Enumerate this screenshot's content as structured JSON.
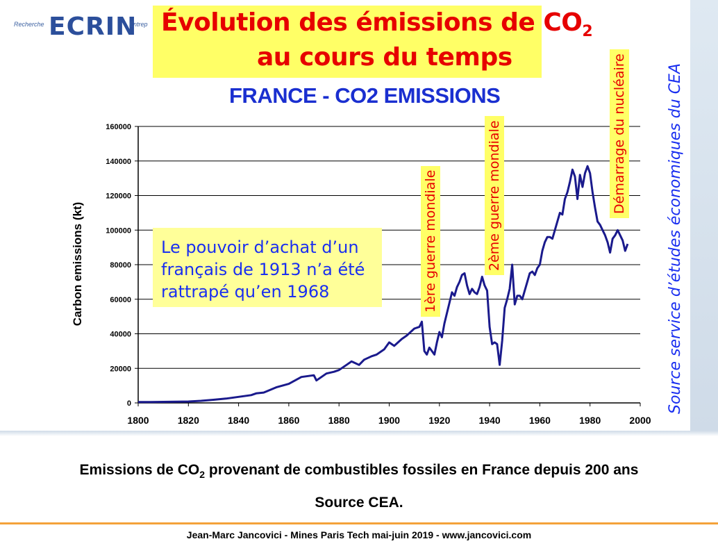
{
  "logo": {
    "left": "Recherche",
    "main": "ECRIN",
    "right": "Entrep"
  },
  "slide_title": {
    "line1": "Évolution des émissions de CO",
    "line1_sub": "2",
    "line2": "au cours du temps"
  },
  "annotations": {
    "box_lines": [
      "Le pouvoir d’achat d’un",
      "français de 1913 n’a été",
      "rattrapé qu’en 1968"
    ],
    "ww1": "1ère guerre mondiale",
    "ww2": "2ème guerre mondiale",
    "nuclear": "Démarrage du nucléaire",
    "side_source": "Source service d’études économiques du CEA"
  },
  "caption": {
    "line1_pre": "Emissions de CO",
    "line1_sub": "2",
    "line1_post": " provenant de combustibles fossiles en France depuis 200 ans",
    "line2": "Source CEA."
  },
  "footer": "Jean-Marc Jancovici - Mines Paris Tech mai-juin 2019 - www.jancovici.com",
  "colors": {
    "line": "#1a1a8c",
    "title_red": "#e60000",
    "accent_blue": "#1a2fd0",
    "highlight": "#ffff66"
  },
  "chart_data": {
    "type": "line",
    "title": "FRANCE - CO2 EMISSIONS",
    "xlabel": "",
    "ylabel": "Carbon emissions (kt)",
    "xlim": [
      1800,
      2000
    ],
    "ylim": [
      0,
      160000
    ],
    "x_ticks": [
      1800,
      1820,
      1840,
      1860,
      1880,
      1900,
      1920,
      1940,
      1960,
      1980,
      2000
    ],
    "y_ticks": [
      0,
      20000,
      40000,
      60000,
      80000,
      100000,
      120000,
      140000,
      160000
    ],
    "grid": true,
    "series": [
      {
        "name": "",
        "x": [
          1800,
          1805,
          1810,
          1815,
          1820,
          1825,
          1830,
          1835,
          1840,
          1845,
          1847,
          1850,
          1855,
          1860,
          1865,
          1870,
          1871,
          1875,
          1878,
          1880,
          1883,
          1885,
          1888,
          1890,
          1893,
          1895,
          1898,
          1900,
          1902,
          1905,
          1907,
          1910,
          1912,
          1913,
          1914,
          1915,
          1916,
          1917,
          1918,
          1919,
          1920,
          1921,
          1922,
          1924,
          1925,
          1926,
          1927,
          1928,
          1929,
          1930,
          1931,
          1932,
          1933,
          1934,
          1935,
          1936,
          1937,
          1938,
          1939,
          1940,
          1941,
          1942,
          1943,
          1944,
          1945,
          1946,
          1947,
          1948,
          1949,
          1950,
          1951,
          1952,
          1953,
          1954,
          1955,
          1956,
          1957,
          1958,
          1959,
          1960,
          1961,
          1962,
          1963,
          1964,
          1965,
          1966,
          1967,
          1968,
          1969,
          1970,
          1971,
          1972,
          1973,
          1974,
          1975,
          1976,
          1977,
          1978,
          1979,
          1980,
          1981,
          1982,
          1983,
          1984,
          1985,
          1986,
          1987,
          1988,
          1989,
          1990,
          1991,
          1992,
          1993,
          1994,
          1995
        ],
        "values": [
          500,
          500,
          600,
          700,
          800,
          1200,
          1800,
          2500,
          3500,
          4500,
          5500,
          6000,
          9000,
          11000,
          15000,
          16000,
          13000,
          17000,
          18000,
          19000,
          22000,
          24000,
          22000,
          25000,
          27000,
          28000,
          31000,
          35000,
          33000,
          37000,
          39000,
          43000,
          44000,
          47000,
          30000,
          28000,
          32000,
          30000,
          28000,
          35000,
          41000,
          38000,
          46000,
          58000,
          64000,
          62000,
          67000,
          70000,
          74000,
          75000,
          68000,
          63000,
          66000,
          64000,
          63000,
          67000,
          73000,
          68000,
          65000,
          44000,
          34000,
          35000,
          34000,
          22000,
          36000,
          55000,
          60000,
          66000,
          80000,
          57000,
          62000,
          62000,
          60000,
          65000,
          70000,
          75000,
          76000,
          74000,
          78000,
          80000,
          88000,
          93000,
          96000,
          96000,
          95000,
          100000,
          105000,
          110000,
          109000,
          118000,
          122000,
          128000,
          135000,
          131000,
          118000,
          132000,
          125000,
          133000,
          137000,
          133000,
          122000,
          113000,
          105000,
          103000,
          100000,
          97000,
          93000,
          87000,
          95000,
          97000,
          100000,
          97000,
          94000,
          88000,
          92000
        ]
      }
    ]
  }
}
